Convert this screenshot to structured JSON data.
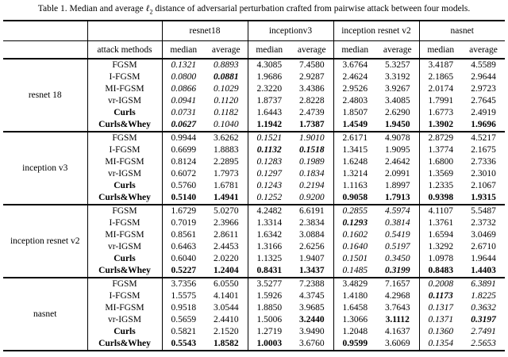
{
  "caption": {
    "prefix": "Table 1. Median and average ",
    "math_symbol": "ℓ",
    "subscript": "2",
    "suffix": " distance of adversarial perturbation crafted from pairwise attack between four models."
  },
  "table": {
    "attack_methods_header": "attack methods",
    "model_columns": [
      "resnet18",
      "inceptionv3",
      "inception resnet v2",
      "nasnet"
    ],
    "subheaders": [
      "median",
      "average"
    ],
    "row_groups": [
      {
        "source_model": "resnet 18",
        "rows": [
          {
            "method": "FGSM",
            "method_style": "",
            "cells": [
              [
                "0.1321",
                "i"
              ],
              [
                "0.8893",
                "i"
              ],
              [
                "4.3085",
                ""
              ],
              [
                "7.4580",
                ""
              ],
              [
                "3.6764",
                ""
              ],
              [
                "5.3257",
                ""
              ],
              [
                "3.4187",
                ""
              ],
              [
                "4.5589",
                ""
              ]
            ]
          },
          {
            "method": "I-FGSM",
            "method_style": "",
            "cells": [
              [
                "0.0800",
                "i"
              ],
              [
                "0.0881",
                "bi"
              ],
              [
                "1.9686",
                ""
              ],
              [
                "2.9287",
                ""
              ],
              [
                "2.4624",
                ""
              ],
              [
                "3.3192",
                ""
              ],
              [
                "2.1865",
                ""
              ],
              [
                "2.9644",
                ""
              ]
            ]
          },
          {
            "method": "MI-FGSM",
            "method_style": "",
            "cells": [
              [
                "0.0866",
                "i"
              ],
              [
                "0.1029",
                "i"
              ],
              [
                "2.3220",
                ""
              ],
              [
                "3.4386",
                ""
              ],
              [
                "2.9526",
                ""
              ],
              [
                "3.9267",
                ""
              ],
              [
                "2.0174",
                ""
              ],
              [
                "2.9723",
                ""
              ]
            ]
          },
          {
            "method": "vr-IGSM",
            "method_style": "",
            "cells": [
              [
                "0.0941",
                "i"
              ],
              [
                "0.1120",
                "i"
              ],
              [
                "1.8737",
                ""
              ],
              [
                "2.8228",
                ""
              ],
              [
                "2.4803",
                ""
              ],
              [
                "3.4085",
                ""
              ],
              [
                "1.7991",
                ""
              ],
              [
                "2.7645",
                ""
              ]
            ]
          },
          {
            "method": "Curls",
            "method_style": "b",
            "cells": [
              [
                "0.0731",
                "i"
              ],
              [
                "0.1182",
                "i"
              ],
              [
                "1.6443",
                ""
              ],
              [
                "2.4739",
                ""
              ],
              [
                "1.8507",
                ""
              ],
              [
                "2.6290",
                ""
              ],
              [
                "1.6773",
                ""
              ],
              [
                "2.4919",
                ""
              ]
            ]
          },
          {
            "method": "Curls&Whey",
            "method_style": "b",
            "cells": [
              [
                "0.0627",
                "bi"
              ],
              [
                "0.1040",
                "i"
              ],
              [
                "1.1942",
                "b"
              ],
              [
                "1.7387",
                "b"
              ],
              [
                "1.4549",
                "b"
              ],
              [
                "1.9450",
                "b"
              ],
              [
                "1.3902",
                "b"
              ],
              [
                "1.9696",
                "b"
              ]
            ]
          }
        ]
      },
      {
        "source_model": "inception v3",
        "rows": [
          {
            "method": "FGSM",
            "method_style": "",
            "cells": [
              [
                "0.9944",
                ""
              ],
              [
                "3.6262",
                ""
              ],
              [
                "0.1521",
                "i"
              ],
              [
                "1.9010",
                "i"
              ],
              [
                "2.6171",
                ""
              ],
              [
                "4.9078",
                ""
              ],
              [
                "2.8729",
                ""
              ],
              [
                "4.5217",
                ""
              ]
            ]
          },
          {
            "method": "I-FGSM",
            "method_style": "",
            "cells": [
              [
                "0.6699",
                ""
              ],
              [
                "1.8883",
                ""
              ],
              [
                "0.1132",
                "bi"
              ],
              [
                "0.1518",
                "bi"
              ],
              [
                "1.3415",
                ""
              ],
              [
                "1.9095",
                ""
              ],
              [
                "1.3774",
                ""
              ],
              [
                "2.1675",
                ""
              ]
            ]
          },
          {
            "method": "MI-FGSM",
            "method_style": "",
            "cells": [
              [
                "0.8124",
                ""
              ],
              [
                "2.2895",
                ""
              ],
              [
                "0.1283",
                "i"
              ],
              [
                "0.1989",
                "i"
              ],
              [
                "1.6248",
                ""
              ],
              [
                "2.4642",
                ""
              ],
              [
                "1.6800",
                ""
              ],
              [
                "2.7336",
                ""
              ]
            ]
          },
          {
            "method": "vr-IGSM",
            "method_style": "",
            "cells": [
              [
                "0.6072",
                ""
              ],
              [
                "1.7973",
                ""
              ],
              [
                "0.1297",
                "i"
              ],
              [
                "0.1834",
                "i"
              ],
              [
                "1.3214",
                ""
              ],
              [
                "2.0991",
                ""
              ],
              [
                "1.3569",
                ""
              ],
              [
                "2.3010",
                ""
              ]
            ]
          },
          {
            "method": "Curls",
            "method_style": "b",
            "cells": [
              [
                "0.5760",
                ""
              ],
              [
                "1.6781",
                ""
              ],
              [
                "0.1243",
                "i"
              ],
              [
                "0.2194",
                "i"
              ],
              [
                "1.1163",
                ""
              ],
              [
                "1.8997",
                ""
              ],
              [
                "1.2335",
                ""
              ],
              [
                "2.1067",
                ""
              ]
            ]
          },
          {
            "method": "Curls&Whey",
            "method_style": "b",
            "cells": [
              [
                "0.5140",
                "b"
              ],
              [
                "1.4941",
                "b"
              ],
              [
                "0.1252",
                "i"
              ],
              [
                "0.9200",
                "i"
              ],
              [
                "0.9058",
                "b"
              ],
              [
                "1.7913",
                "b"
              ],
              [
                "0.9398",
                "b"
              ],
              [
                "1.9315",
                "b"
              ]
            ]
          }
        ]
      },
      {
        "source_model": "inception resnet v2",
        "rows": [
          {
            "method": "FGSM",
            "method_style": "",
            "cells": [
              [
                "1.6729",
                ""
              ],
              [
                "5.0270",
                ""
              ],
              [
                "4.2482",
                ""
              ],
              [
                "6.6191",
                ""
              ],
              [
                "0.2855",
                "i"
              ],
              [
                "4.5974",
                "i"
              ],
              [
                "4.1107",
                ""
              ],
              [
                "5.5487",
                ""
              ]
            ]
          },
          {
            "method": "I-FGSM",
            "method_style": "",
            "cells": [
              [
                "0.7019",
                ""
              ],
              [
                "2.3966",
                ""
              ],
              [
                "1.3314",
                ""
              ],
              [
                "2.3834",
                ""
              ],
              [
                "0.1293",
                "bi"
              ],
              [
                "0.3814",
                "i"
              ],
              [
                "1.3761",
                ""
              ],
              [
                "2.3732",
                ""
              ]
            ]
          },
          {
            "method": "MI-FGSM",
            "method_style": "",
            "cells": [
              [
                "0.8561",
                ""
              ],
              [
                "2.8611",
                ""
              ],
              [
                "1.6342",
                ""
              ],
              [
                "3.0884",
                ""
              ],
              [
                "0.1602",
                "i"
              ],
              [
                "0.5419",
                "i"
              ],
              [
                "1.6594",
                ""
              ],
              [
                "3.0469",
                ""
              ]
            ]
          },
          {
            "method": "vr-IGSM",
            "method_style": "",
            "cells": [
              [
                "0.6463",
                ""
              ],
              [
                "2.4453",
                ""
              ],
              [
                "1.3166",
                ""
              ],
              [
                "2.6256",
                ""
              ],
              [
                "0.1640",
                "i"
              ],
              [
                "0.5197",
                "i"
              ],
              [
                "1.3292",
                ""
              ],
              [
                "2.6710",
                ""
              ]
            ]
          },
          {
            "method": "Curls",
            "method_style": "b",
            "cells": [
              [
                "0.6040",
                ""
              ],
              [
                "2.0220",
                ""
              ],
              [
                "1.1325",
                ""
              ],
              [
                "1.9407",
                ""
              ],
              [
                "0.1501",
                "i"
              ],
              [
                "0.3450",
                "i"
              ],
              [
                "1.0978",
                ""
              ],
              [
                "1.9644",
                ""
              ]
            ]
          },
          {
            "method": "Curls&Whey",
            "method_style": "b",
            "cells": [
              [
                "0.5227",
                "b"
              ],
              [
                "1.2404",
                "b"
              ],
              [
                "0.8431",
                "b"
              ],
              [
                "1.3437",
                "b"
              ],
              [
                "0.1485",
                "i"
              ],
              [
                "0.3199",
                "bi"
              ],
              [
                "0.8483",
                "b"
              ],
              [
                "1.4403",
                "b"
              ]
            ]
          }
        ]
      },
      {
        "source_model": "nasnet",
        "rows": [
          {
            "method": "FGSM",
            "method_style": "",
            "cells": [
              [
                "3.7356",
                ""
              ],
              [
                "6.0550",
                ""
              ],
              [
                "3.5277",
                ""
              ],
              [
                "7.2388",
                ""
              ],
              [
                "3.4829",
                ""
              ],
              [
                "7.1657",
                ""
              ],
              [
                "0.2008",
                "i"
              ],
              [
                "6.3891",
                "i"
              ]
            ]
          },
          {
            "method": "I-FGSM",
            "method_style": "",
            "cells": [
              [
                "1.5575",
                ""
              ],
              [
                "4.1401",
                ""
              ],
              [
                "1.5926",
                ""
              ],
              [
                "4.3745",
                ""
              ],
              [
                "1.4180",
                ""
              ],
              [
                "4.2968",
                ""
              ],
              [
                "0.1173",
                "bi"
              ],
              [
                "1.8225",
                "i"
              ]
            ]
          },
          {
            "method": "MI-FGSM",
            "method_style": "",
            "cells": [
              [
                "0.9518",
                ""
              ],
              [
                "3.0544",
                ""
              ],
              [
                "1.8850",
                ""
              ],
              [
                "3.9685",
                ""
              ],
              [
                "1.6458",
                ""
              ],
              [
                "3.7643",
                ""
              ],
              [
                "0.1317",
                "i"
              ],
              [
                "0.3632",
                "i"
              ]
            ]
          },
          {
            "method": "vr-IGSM",
            "method_style": "",
            "cells": [
              [
                "0.5659",
                ""
              ],
              [
                "2.4410",
                ""
              ],
              [
                "1.5006",
                ""
              ],
              [
                "3.2440",
                "b"
              ],
              [
                "1.3066",
                ""
              ],
              [
                "3.1112",
                "b"
              ],
              [
                "0.1371",
                "i"
              ],
              [
                "0.3197",
                "bi"
              ]
            ]
          },
          {
            "method": "Curls",
            "method_style": "b",
            "cells": [
              [
                "0.5821",
                ""
              ],
              [
                "2.1520",
                ""
              ],
              [
                "1.2719",
                ""
              ],
              [
                "3.9490",
                ""
              ],
              [
                "1.2048",
                ""
              ],
              [
                "4.1637",
                ""
              ],
              [
                "0.1360",
                "i"
              ],
              [
                "2.7491",
                "i"
              ]
            ]
          },
          {
            "method": "Curls&Whey",
            "method_style": "b",
            "cells": [
              [
                "0.5543",
                "b"
              ],
              [
                "1.8582",
                "b"
              ],
              [
                "1.0003",
                "b"
              ],
              [
                "3.6760",
                ""
              ],
              [
                "0.9599",
                "b"
              ],
              [
                "3.6069",
                ""
              ],
              [
                "0.1354",
                "i"
              ],
              [
                "2.5653",
                "i"
              ]
            ]
          }
        ]
      }
    ]
  }
}
